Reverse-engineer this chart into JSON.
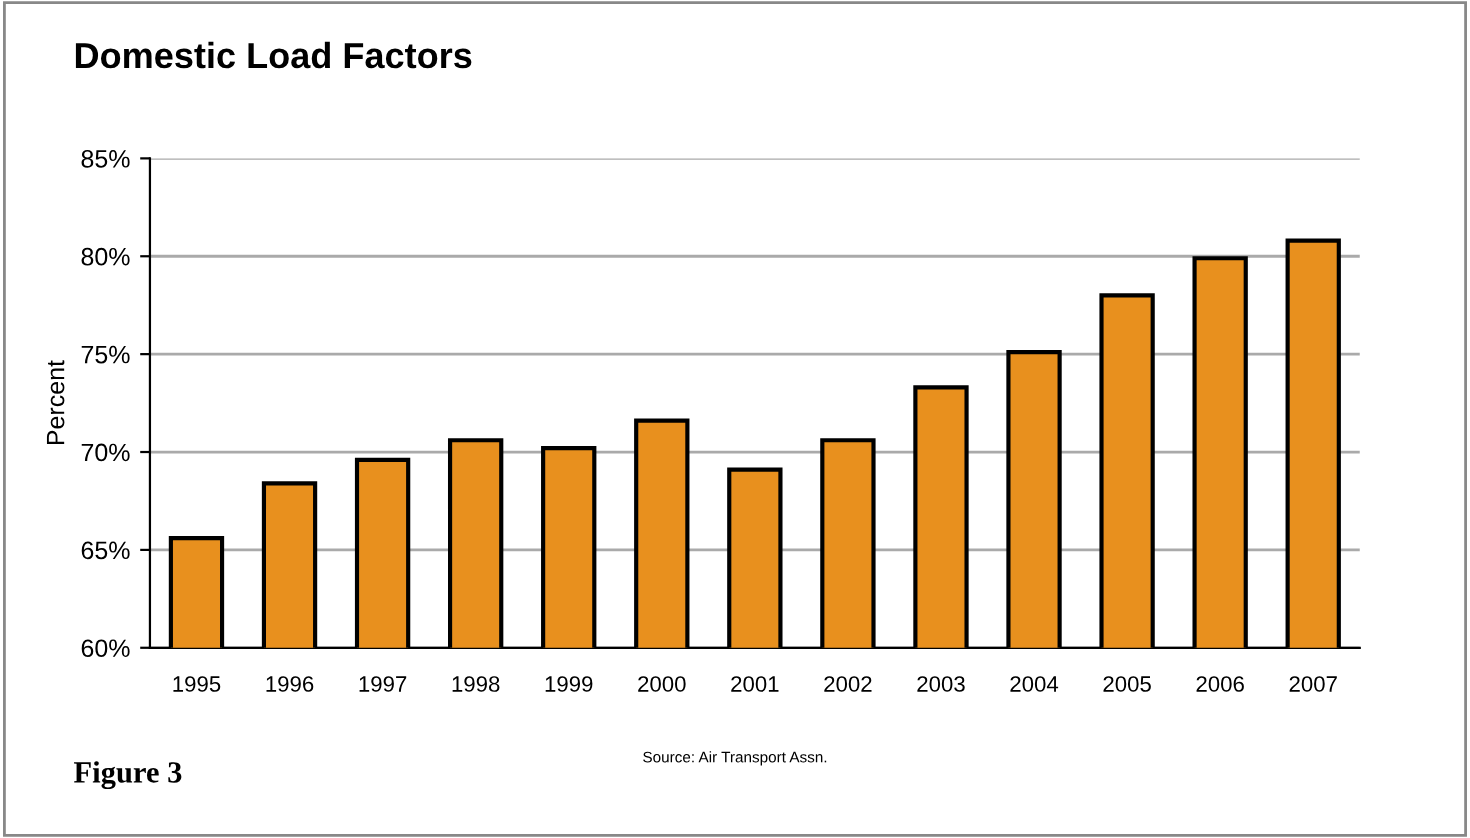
{
  "chart_data": {
    "type": "bar",
    "title": "Domestic Load Factors",
    "ylabel": "Percent",
    "categories": [
      "1995",
      "1996",
      "1997",
      "1998",
      "1999",
      "2000",
      "2001",
      "2002",
      "2003",
      "2004",
      "2005",
      "2006",
      "2007"
    ],
    "values": [
      65.6,
      68.4,
      69.6,
      70.6,
      70.2,
      71.6,
      69.1,
      70.6,
      73.3,
      75.1,
      78.0,
      79.9,
      80.8
    ],
    "color": "#e8901e",
    "ylim": [
      60,
      85
    ],
    "yticks": [
      {
        "value": 60,
        "label": "60%"
      },
      {
        "value": 65,
        "label": "65%"
      },
      {
        "value": 70,
        "label": "70%"
      },
      {
        "value": 75,
        "label": "75%"
      },
      {
        "value": 80,
        "label": "80%"
      },
      {
        "value": 85,
        "label": "85%"
      }
    ],
    "grid": "y",
    "annotations": [
      "Figure 3",
      "Source: Air Transport Assn."
    ]
  }
}
